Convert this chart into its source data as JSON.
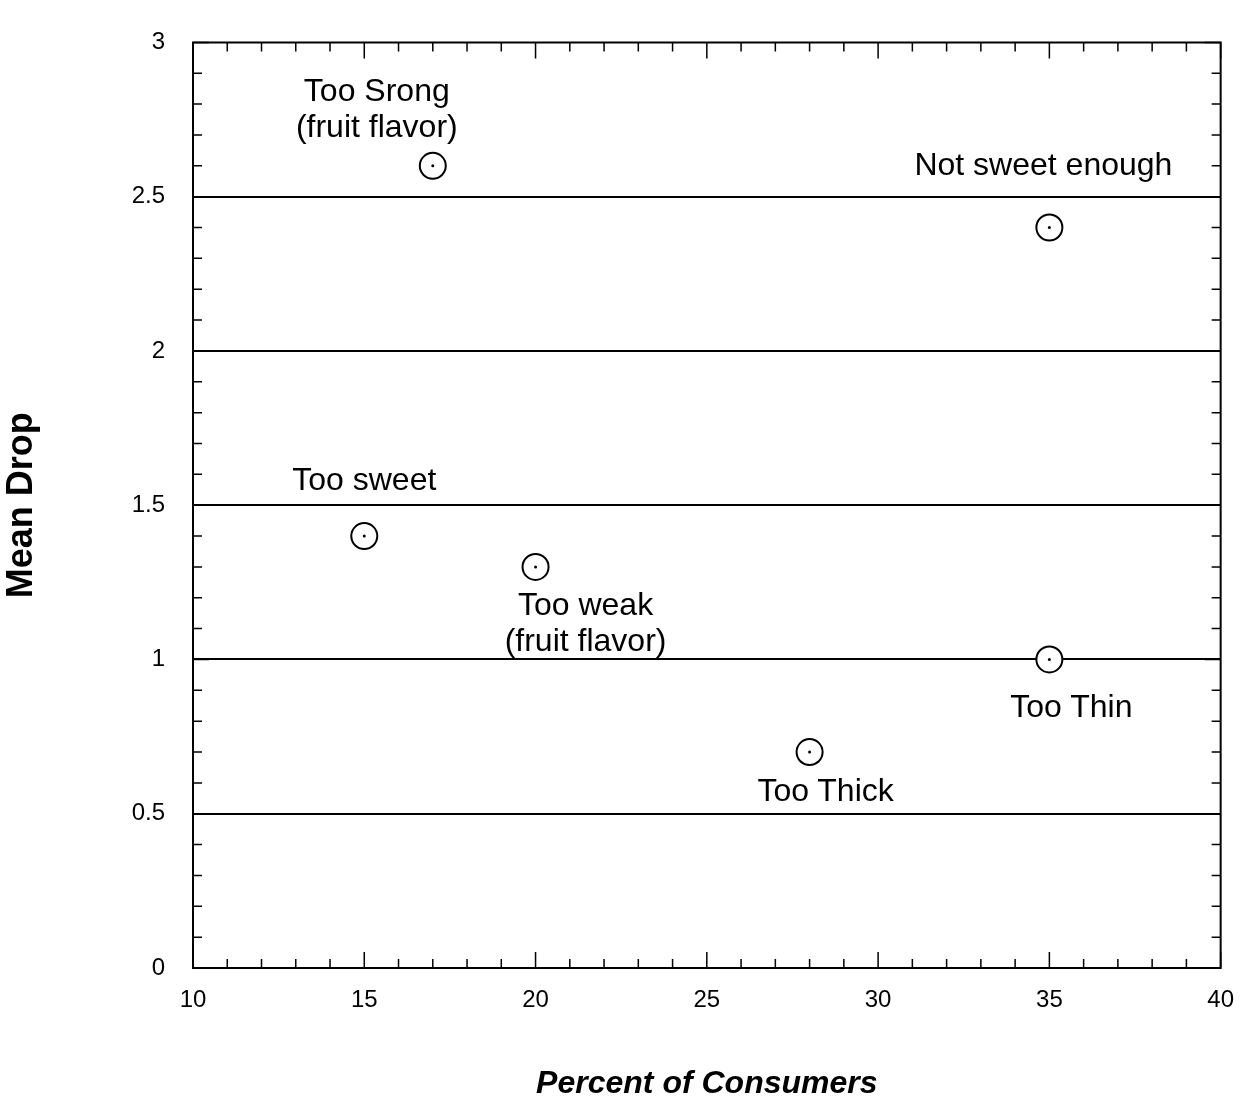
{
  "chart_data": {
    "type": "scatter",
    "xlabel": "Percent of Consumers",
    "ylabel": "Mean Drop",
    "series": [
      {
        "color": "#000000",
        "x": [
          17,
          35,
          15,
          20,
          35,
          28
        ],
        "values": [
          2.6,
          2.4,
          1.4,
          1.3,
          1.0,
          0.7
        ]
      }
    ],
    "marker": "circle",
    "grid": "y",
    "legend": false,
    "xlim": [
      10,
      40
    ],
    "xticks": [
      10,
      {
        "value": 11,
        "label": null
      },
      {
        "value": 12,
        "label": null
      },
      {
        "value": 13,
        "label": null
      },
      {
        "value": 14,
        "label": null
      },
      15,
      {
        "value": 16,
        "label": null
      },
      {
        "value": 17,
        "label": null
      },
      {
        "value": 18,
        "label": null
      },
      {
        "value": 19,
        "label": null
      },
      20,
      {
        "value": 21,
        "label": null
      },
      {
        "value": 22,
        "label": null
      },
      {
        "value": 23,
        "label": null
      },
      {
        "value": 24,
        "label": null
      },
      25,
      {
        "value": 26,
        "label": null
      },
      {
        "value": 27,
        "label": null
      },
      {
        "value": 28,
        "label": null
      },
      {
        "value": 29,
        "label": null
      },
      30,
      {
        "value": 31,
        "label": null
      },
      {
        "value": 32,
        "label": null
      },
      {
        "value": 33,
        "label": null
      },
      {
        "value": 34,
        "label": null
      },
      35,
      {
        "value": 36,
        "label": null
      },
      {
        "value": 37,
        "label": null
      },
      {
        "value": 38,
        "label": null
      },
      {
        "value": 39,
        "label": null
      },
      40
    ],
    "ylim": [
      0,
      3
    ],
    "yticks": [
      0,
      {
        "value": 0.1,
        "label": null
      },
      {
        "value": 0.2,
        "label": null
      },
      {
        "value": 0.3,
        "label": null
      },
      {
        "value": 0.4,
        "label": null
      },
      0.5,
      {
        "value": 0.6,
        "label": null
      },
      {
        "value": 0.7,
        "label": null
      },
      {
        "value": 0.8,
        "label": null
      },
      {
        "value": 0.9,
        "label": null
      },
      1,
      {
        "value": 1.1,
        "label": null
      },
      {
        "value": 1.2,
        "label": null
      },
      {
        "value": 1.3,
        "label": null
      },
      {
        "value": 1.4,
        "label": null
      },
      1.5,
      {
        "value": 1.6,
        "label": null
      },
      {
        "value": 1.7,
        "label": null
      },
      {
        "value": 1.8,
        "label": null
      },
      {
        "value": 1.9,
        "label": null
      },
      2,
      {
        "value": 2.1,
        "label": null
      },
      {
        "value": 2.2,
        "label": null
      },
      {
        "value": 2.3,
        "label": null
      },
      {
        "value": 2.4,
        "label": null
      },
      2.5,
      {
        "value": 2.6,
        "label": null
      },
      {
        "value": 2.7,
        "label": null
      },
      {
        "value": 2.8,
        "label": null
      },
      {
        "value": 2.9,
        "label": null
      },
      3
    ],
    "annotations": [
      {
        "text": "Too Srong\n(fruit flavor)",
        "x": 17,
        "y": 2.6
      },
      {
        "text": "Not sweet enough",
        "x": 35,
        "y": 2.4
      },
      {
        "text": "Too sweet",
        "x": 15,
        "y": 1.4
      },
      {
        "text": "Too weak\n(fruit flavor)",
        "x": 20,
        "y": 1.3
      },
      {
        "text": "Too Thin",
        "x": 35,
        "y": 1.0
      },
      {
        "text": "Too Thick",
        "x": 28,
        "y": 0.7
      }
    ]
  }
}
